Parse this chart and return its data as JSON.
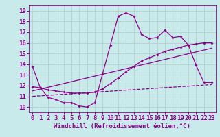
{
  "xlabel": "Windchill (Refroidissement éolien,°C)",
  "background_color": "#c8eaea",
  "grid_color": "#b0c8c8",
  "line_color": "#8b008b",
  "xlim": [
    -0.5,
    23.5
  ],
  "ylim": [
    9.5,
    19.5
  ],
  "xticks": [
    0,
    1,
    2,
    3,
    4,
    5,
    6,
    7,
    8,
    9,
    10,
    11,
    12,
    13,
    14,
    15,
    16,
    17,
    18,
    19,
    20,
    21,
    22,
    23
  ],
  "yticks": [
    10,
    11,
    12,
    13,
    14,
    15,
    16,
    17,
    18,
    19
  ],
  "line1_x": [
    0,
    1,
    2,
    3,
    4,
    5,
    6,
    7,
    8,
    9,
    10,
    11,
    12,
    13,
    14,
    15,
    16,
    17,
    18,
    19,
    20,
    21,
    22,
    23
  ],
  "line1_y": [
    13.8,
    11.8,
    10.9,
    10.7,
    10.4,
    10.4,
    10.1,
    10.0,
    10.4,
    13.1,
    15.8,
    18.5,
    18.8,
    18.5,
    16.8,
    16.4,
    16.5,
    17.2,
    16.5,
    16.6,
    15.8,
    13.9,
    12.3,
    12.3
  ],
  "line2_x": [
    0,
    1,
    2,
    3,
    4,
    5,
    6,
    7,
    8,
    9,
    10,
    11,
    12,
    13,
    14,
    15,
    16,
    17,
    18,
    19,
    20,
    21,
    22,
    23
  ],
  "line2_y": [
    11.9,
    11.8,
    11.6,
    11.5,
    11.4,
    11.3,
    11.3,
    11.3,
    11.4,
    11.7,
    12.2,
    12.7,
    13.3,
    13.8,
    14.3,
    14.6,
    14.9,
    15.2,
    15.4,
    15.6,
    15.8,
    15.9,
    16.0,
    16.0
  ],
  "line3_x": [
    0,
    23
  ],
  "line3_y": [
    11.5,
    15.5
  ],
  "line4_x": [
    0,
    23
  ],
  "line4_y": [
    11.0,
    12.1
  ],
  "fontsize_tick": 6.5,
  "fontsize_label": 6.5
}
